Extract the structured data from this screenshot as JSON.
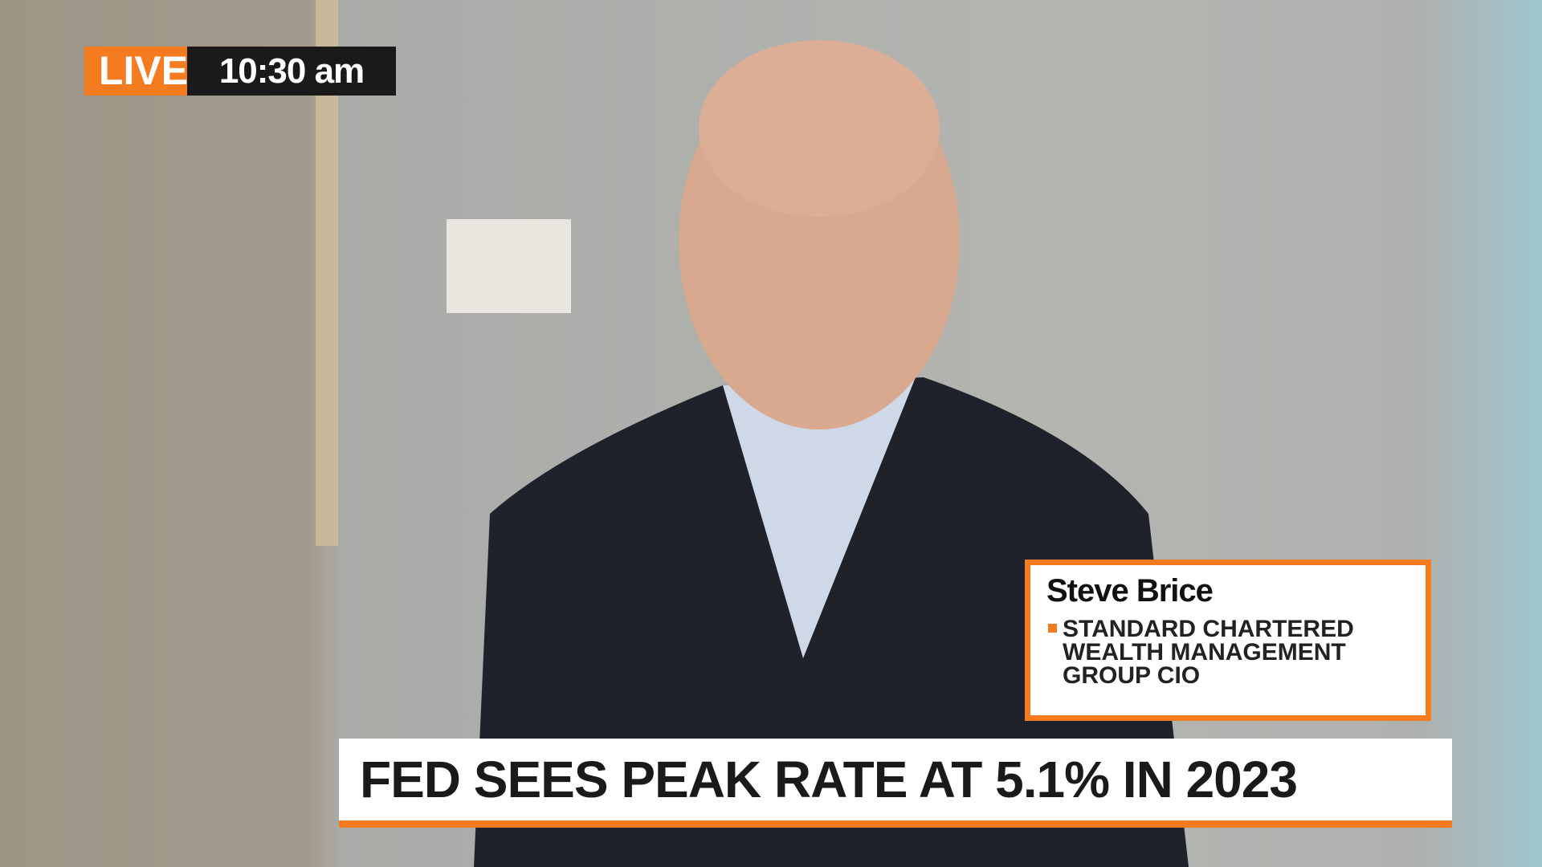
{
  "live": {
    "label": "LIVE",
    "time": "10:30 am"
  },
  "guest": {
    "name": "Steve Brice",
    "title_lines": [
      "STANDARD CHARTERED",
      "WEALTH MANAGEMENT",
      "GROUP CIO"
    ]
  },
  "headline": "FED SEES PEAK RATE AT 5.1% IN 2023"
}
